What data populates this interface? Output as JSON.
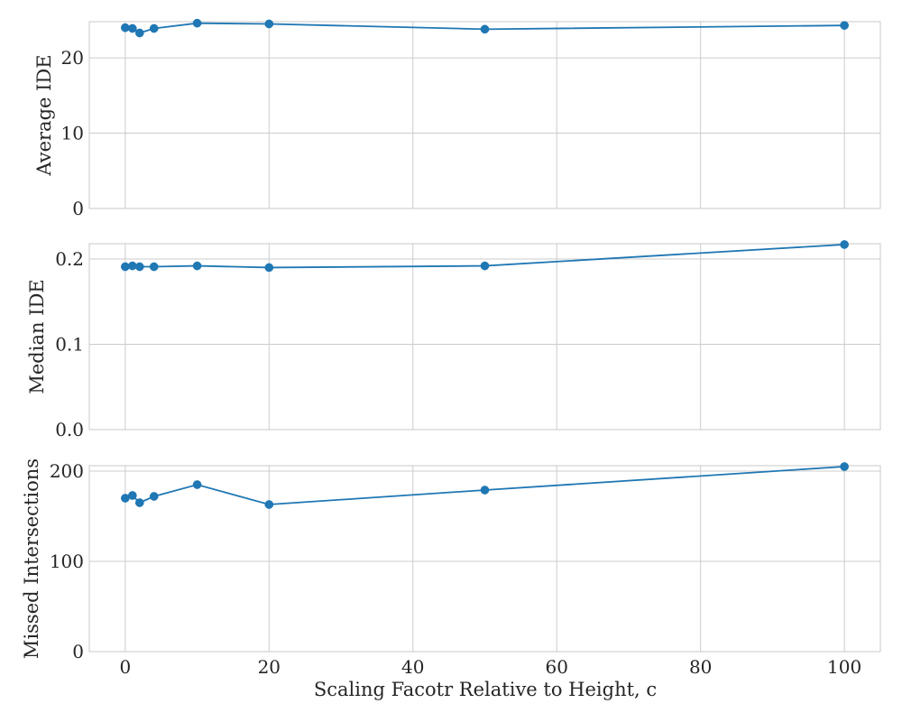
{
  "chart_data": [
    {
      "type": "line",
      "xlabel": "",
      "ylabel": "Average IDE",
      "x": [
        0,
        1,
        2,
        4,
        10,
        20,
        50,
        100
      ],
      "values": [
        24.0,
        23.9,
        23.3,
        23.9,
        24.6,
        24.5,
        23.8,
        24.3
      ],
      "xlim": [
        -5,
        105
      ],
      "ylim": [
        0,
        24.8
      ],
      "yticks": [
        0,
        10,
        20
      ],
      "ytick_labels": [
        "0",
        "10",
        "20"
      ],
      "grid": true
    },
    {
      "type": "line",
      "xlabel": "",
      "ylabel": "Median IDE",
      "x": [
        0,
        1,
        2,
        4,
        10,
        20,
        50,
        100
      ],
      "values": [
        0.191,
        0.192,
        0.191,
        0.191,
        0.192,
        0.19,
        0.192,
        0.217
      ],
      "xlim": [
        -5,
        105
      ],
      "ylim": [
        0,
        0.218
      ],
      "yticks": [
        0,
        0.1,
        0.2
      ],
      "ytick_labels": [
        "0.0",
        "0.1",
        "0.2"
      ],
      "grid": true
    },
    {
      "type": "line",
      "xlabel": "Scaling Facotr Relative to Height, c",
      "ylabel": "Missed Intersections",
      "x": [
        0,
        1,
        2,
        4,
        10,
        20,
        50,
        100
      ],
      "values": [
        170,
        173,
        165,
        172,
        185,
        163,
        179,
        205
      ],
      "xlim": [
        -5,
        105
      ],
      "ylim": [
        0,
        206
      ],
      "yticks": [
        0,
        100,
        200
      ],
      "ytick_labels": [
        "0",
        "100",
        "200"
      ],
      "xticks": [
        0,
        20,
        40,
        60,
        80,
        100
      ],
      "xtick_labels": [
        "0",
        "20",
        "40",
        "60",
        "80",
        "100"
      ],
      "grid": true
    }
  ]
}
